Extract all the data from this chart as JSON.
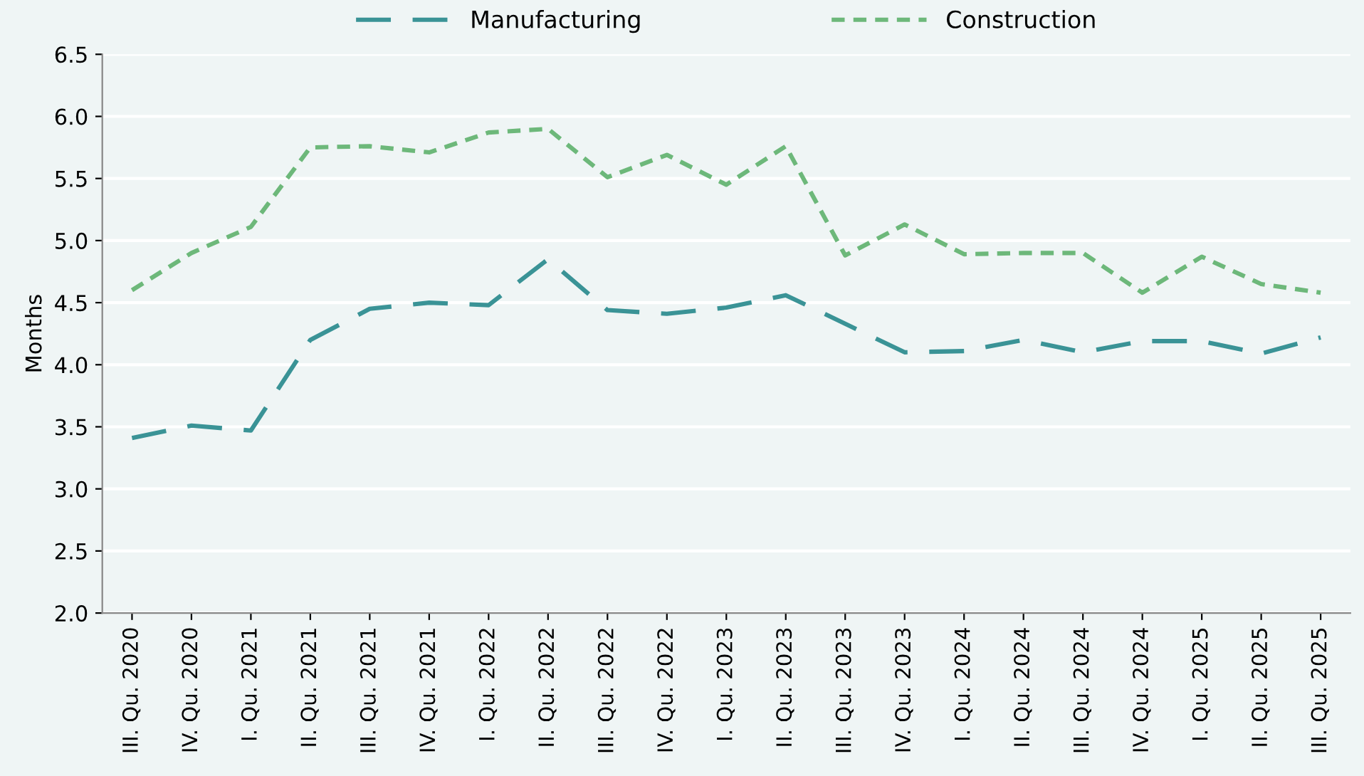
{
  "chart_data": {
    "type": "line",
    "ylabel": "Months",
    "categories": [
      "III. Qu. 2020",
      "IV. Qu. 2020",
      "I. Qu. 2021",
      "II. Qu. 2021",
      "III. Qu. 2021",
      "IV. Qu. 2021",
      "I. Qu. 2022",
      "II. Qu. 2022",
      "III. Qu. 2022",
      "IV. Qu. 2022",
      "I. Qu. 2023",
      "II. Qu. 2023",
      "III. Qu. 2023",
      "IV. Qu. 2023",
      "I. Qu. 2024",
      "II. Qu. 2024",
      "III. Qu. 2024",
      "IV. Qu. 2024",
      "I. Qu. 2025",
      "II. Qu. 2025",
      "III. Qu. 2025"
    ],
    "series": [
      {
        "name": "Manufacturing",
        "color": "#3a9396",
        "line_style": "dashed",
        "values": [
          3.41,
          3.51,
          3.47,
          4.2,
          4.45,
          4.5,
          4.48,
          4.85,
          4.44,
          4.41,
          4.46,
          4.56,
          4.33,
          4.1,
          4.11,
          4.2,
          4.1,
          4.19,
          4.19,
          4.09,
          4.22
        ]
      },
      {
        "name": "Construction",
        "color": "#6db87a",
        "line_style": "dotted",
        "values": [
          4.6,
          4.9,
          5.11,
          5.75,
          5.76,
          5.71,
          5.87,
          5.9,
          5.51,
          5.69,
          5.45,
          5.76,
          4.88,
          5.13,
          4.89,
          4.9,
          4.9,
          4.58,
          4.87,
          4.65,
          4.58
        ]
      }
    ],
    "ylim": [
      2.0,
      6.5
    ],
    "yticks": [
      {
        "value": 2.0,
        "label": "2.0"
      },
      {
        "value": 2.5,
        "label": "2.5"
      },
      {
        "value": 3.0,
        "label": "3.0"
      },
      {
        "value": 3.5,
        "label": "3.5"
      },
      {
        "value": 4.0,
        "label": "4.0"
      },
      {
        "value": 4.5,
        "label": "4.5"
      },
      {
        "value": 5.0,
        "label": "5.0"
      },
      {
        "value": 5.5,
        "label": "5.5"
      },
      {
        "value": 6.0,
        "label": "6.0"
      },
      {
        "value": 6.5,
        "label": "6.5"
      }
    ],
    "grid": "y",
    "legend": "top",
    "marker": "none"
  }
}
